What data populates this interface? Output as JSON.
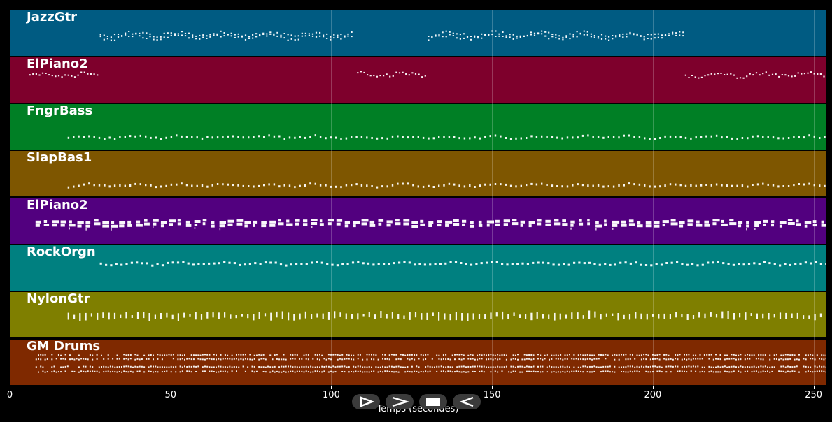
{
  "tracks": [
    {
      "name": "JazzGtr",
      "color": "#005b82"
    },
    {
      "name": "ElPiano2",
      "color": "#7e002c"
    },
    {
      "name": "FngrBass",
      "color": "#007f25"
    },
    {
      "name": "SlapBas1",
      "color": "#7e5600"
    },
    {
      "name": "ElPiano2",
      "color": "#52007f"
    },
    {
      "name": "RockOrgn",
      "color": "#008080"
    },
    {
      "name": "NylonGtr",
      "color": "#7f7f00"
    },
    {
      "name": "GM Drums",
      "color": "#7f2900"
    }
  ],
  "axis": {
    "xlabel": "Temps (secondes)",
    "xlim": [
      0,
      254
    ],
    "ticks": [
      "0",
      "50",
      "100",
      "150",
      "200",
      "250"
    ],
    "grid": true
  },
  "controls": [
    {
      "name": "play-icon"
    },
    {
      "name": "fast-forward-icon"
    },
    {
      "name": "stop-icon"
    },
    {
      "name": "rewind-icon"
    }
  ]
}
